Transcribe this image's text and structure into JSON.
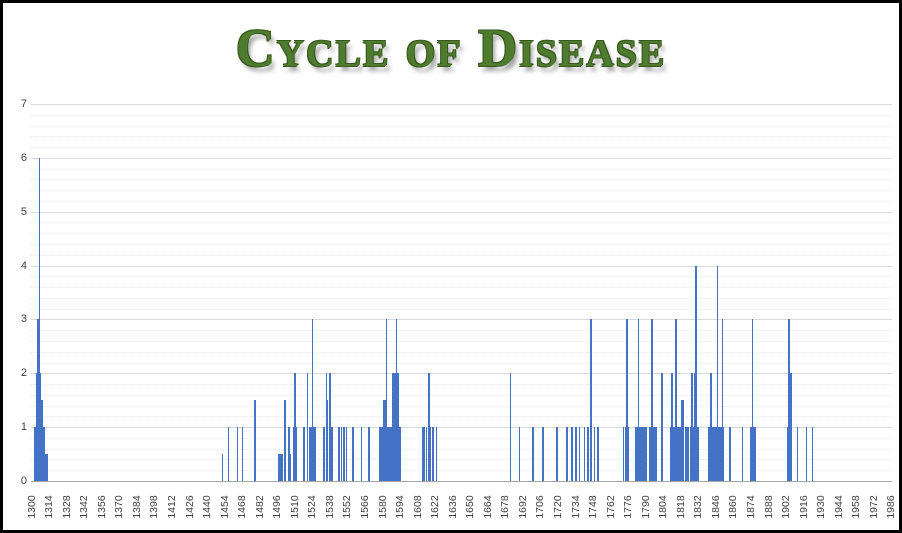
{
  "title": "Cycle of Disease",
  "colors": {
    "title_green": "#4e7b2e",
    "bar_blue": "#4472c4",
    "grid_major": "#d9d9d9",
    "grid_minor": "#e9e9e9",
    "axis_text": "#404040",
    "frame_border": "#000000"
  },
  "chart_data": {
    "type": "bar",
    "title": "Cycle of Disease",
    "xlabel": "",
    "ylabel": "",
    "x_range": [
      1300,
      1986
    ],
    "ylim": [
      0,
      7
    ],
    "y_ticks": [
      0,
      1,
      2,
      3,
      4,
      5,
      6,
      7
    ],
    "y_minor_step": 0.2,
    "grid": true,
    "legend": false,
    "bar_color": "#4472c4",
    "x_tick_labels": [
      1300,
      1314,
      1328,
      1342,
      1356,
      1370,
      1384,
      1398,
      1412,
      1426,
      1440,
      1454,
      1468,
      1482,
      1496,
      1510,
      1524,
      1538,
      1552,
      1566,
      1580,
      1594,
      1608,
      1622,
      1636,
      1650,
      1664,
      1678,
      1692,
      1706,
      1720,
      1734,
      1748,
      1762,
      1776,
      1790,
      1804,
      1818,
      1832,
      1846,
      1860,
      1874,
      1888,
      1902,
      1916,
      1930,
      1944,
      1958,
      1972,
      1986
    ],
    "points": [
      [
        1302,
        1
      ],
      [
        1303,
        1
      ],
      [
        1304,
        2
      ],
      [
        1305,
        3
      ],
      [
        1306,
        6
      ],
      [
        1307,
        2
      ],
      [
        1308,
        1.5
      ],
      [
        1309,
        1
      ],
      [
        1310,
        1
      ],
      [
        1311,
        0.5
      ],
      [
        1312,
        0.5
      ],
      [
        1452,
        0.5
      ],
      [
        1457,
        1
      ],
      [
        1464,
        1
      ],
      [
        1468,
        1
      ],
      [
        1478,
        1.5
      ],
      [
        1497,
        0.5
      ],
      [
        1498,
        0.5
      ],
      [
        1499,
        0.5
      ],
      [
        1500,
        0.5
      ],
      [
        1502,
        1.5
      ],
      [
        1505,
        1
      ],
      [
        1506,
        0.5
      ],
      [
        1509,
        1
      ],
      [
        1510,
        2
      ],
      [
        1511,
        1
      ],
      [
        1517,
        1
      ],
      [
        1520,
        2
      ],
      [
        1522,
        1
      ],
      [
        1523,
        1
      ],
      [
        1524,
        3
      ],
      [
        1525,
        1
      ],
      [
        1526,
        1
      ],
      [
        1533,
        1
      ],
      [
        1535,
        2
      ],
      [
        1536,
        1.5
      ],
      [
        1538,
        2
      ],
      [
        1539,
        1
      ],
      [
        1540,
        1
      ],
      [
        1545,
        1
      ],
      [
        1547,
        1
      ],
      [
        1549,
        1
      ],
      [
        1551,
        1
      ],
      [
        1556,
        1
      ],
      [
        1563,
        1
      ],
      [
        1569,
        1
      ],
      [
        1578,
        1
      ],
      [
        1579,
        1
      ],
      [
        1580,
        1
      ],
      [
        1581,
        1.5
      ],
      [
        1582,
        1.5
      ],
      [
        1583,
        3
      ],
      [
        1584,
        1
      ],
      [
        1585,
        1
      ],
      [
        1586,
        1
      ],
      [
        1587,
        1
      ],
      [
        1588,
        2
      ],
      [
        1589,
        1
      ],
      [
        1590,
        2
      ],
      [
        1591,
        3
      ],
      [
        1592,
        2
      ],
      [
        1593,
        1
      ],
      [
        1594,
        1
      ],
      [
        1612,
        1
      ],
      [
        1613,
        1
      ],
      [
        1615,
        1
      ],
      [
        1617,
        2
      ],
      [
        1618,
        1
      ],
      [
        1620,
        1
      ],
      [
        1623,
        1
      ],
      [
        1682,
        2
      ],
      [
        1689,
        1
      ],
      [
        1700,
        1
      ],
      [
        1708,
        1
      ],
      [
        1719,
        1
      ],
      [
        1727,
        1
      ],
      [
        1731,
        1
      ],
      [
        1734,
        1
      ],
      [
        1737,
        1
      ],
      [
        1741,
        1
      ],
      [
        1744,
        1
      ],
      [
        1746,
        3
      ],
      [
        1749,
        1
      ],
      [
        1752,
        1
      ],
      [
        1772,
        1
      ],
      [
        1774,
        1
      ],
      [
        1775,
        3
      ],
      [
        1776,
        1
      ],
      [
        1782,
        1
      ],
      [
        1783,
        1
      ],
      [
        1784,
        3
      ],
      [
        1785,
        1
      ],
      [
        1787,
        1
      ],
      [
        1788,
        1
      ],
      [
        1789,
        1
      ],
      [
        1790,
        1
      ],
      [
        1793,
        1
      ],
      [
        1794,
        1
      ],
      [
        1795,
        3
      ],
      [
        1796,
        1
      ],
      [
        1797,
        1
      ],
      [
        1798,
        1
      ],
      [
        1803,
        2
      ],
      [
        1810,
        1
      ],
      [
        1811,
        2
      ],
      [
        1812,
        1
      ],
      [
        1813,
        1
      ],
      [
        1814,
        3
      ],
      [
        1815,
        1
      ],
      [
        1816,
        1
      ],
      [
        1817,
        1
      ],
      [
        1819,
        1.5
      ],
      [
        1820,
        1.5
      ],
      [
        1822,
        1
      ],
      [
        1823,
        1
      ],
      [
        1824,
        1
      ],
      [
        1826,
        1
      ],
      [
        1827,
        2
      ],
      [
        1828,
        1
      ],
      [
        1829,
        2
      ],
      [
        1830,
        4
      ],
      [
        1831,
        1
      ],
      [
        1832,
        1
      ],
      [
        1840,
        1
      ],
      [
        1841,
        1
      ],
      [
        1842,
        2
      ],
      [
        1843,
        1
      ],
      [
        1844,
        1
      ],
      [
        1845,
        1
      ],
      [
        1846,
        1
      ],
      [
        1847,
        4
      ],
      [
        1848,
        1
      ],
      [
        1849,
        1
      ],
      [
        1850,
        1
      ],
      [
        1851,
        3
      ],
      [
        1852,
        1
      ],
      [
        1857,
        1
      ],
      [
        1867,
        1
      ],
      [
        1874,
        1
      ],
      [
        1875,
        3
      ],
      [
        1876,
        1
      ],
      [
        1877,
        1
      ],
      [
        1903,
        1
      ],
      [
        1904,
        3
      ],
      [
        1906,
        2
      ],
      [
        1911,
        1
      ],
      [
        1918,
        1
      ],
      [
        1923,
        1
      ]
    ]
  }
}
